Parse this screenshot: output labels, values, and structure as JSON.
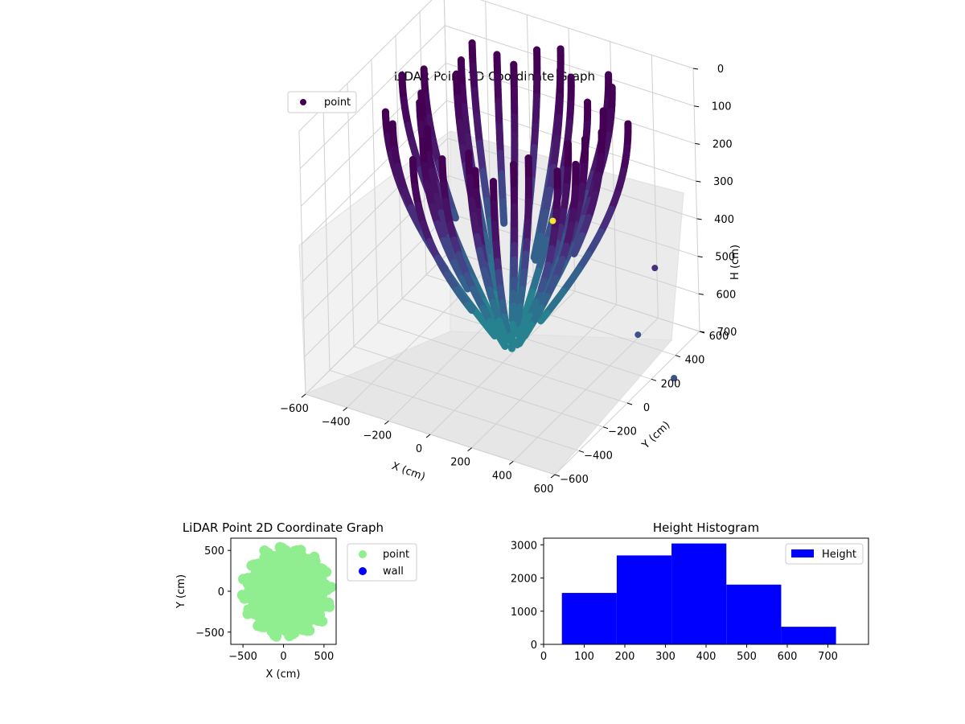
{
  "chart_data": [
    {
      "type": "scatter",
      "projection": "3d",
      "title": "LiDAR Point 3D Coordinate Graph",
      "xlabel": "X (cm)",
      "ylabel": "Y (cm)",
      "zlabel": "H (cm)",
      "xlim": [
        -600,
        600
      ],
      "ylim": [
        -600,
        600
      ],
      "zlim": [
        0,
        700
      ],
      "z_inverted": true,
      "xticks": [
        "−600",
        "−400",
        "−200",
        "0",
        "200",
        "400",
        "600"
      ],
      "yticks": [
        "−600",
        "−400",
        "−200",
        "0",
        "200",
        "400",
        "600"
      ],
      "zticks": [
        "0",
        "100",
        "200",
        "300",
        "400",
        "500",
        "600",
        "700"
      ],
      "colormap": "viridis",
      "grid": true,
      "legend": {
        "placement": "upper-left",
        "entries": [
          {
            "label": "point",
            "color": "#440154"
          }
        ]
      },
      "outlier_points": [
        {
          "x": 650,
          "y": -650,
          "h": 0,
          "color": "#fde725"
        },
        {
          "x": 600,
          "y": 250,
          "h": 420,
          "color": "#472d7b"
        },
        {
          "x": 600,
          "y": 100,
          "h": 550,
          "color": "#3b528b"
        },
        {
          "x": 650,
          "y": 300,
          "h": 720,
          "color": "#3b528b"
        }
      ]
    },
    {
      "type": "scatter",
      "title": "LiDAR Point 2D Coordinate Graph",
      "xlabel": "X (cm)",
      "ylabel": "Y (cm)",
      "xlim": [
        -650,
        650
      ],
      "ylim": [
        -650,
        650
      ],
      "xticks": [
        "−500",
        "0",
        "500"
      ],
      "yticks": [
        "−500",
        "0",
        "500"
      ],
      "series": [
        {
          "name": "point",
          "color": "#90ee90"
        },
        {
          "name": "wall",
          "color": "#0000ff"
        }
      ],
      "legend": {
        "placement": "outside-right"
      }
    },
    {
      "type": "bar",
      "title": "Height Histogram",
      "xlabel": "",
      "ylabel": "",
      "xlim": [
        0,
        800
      ],
      "ylim": [
        0,
        3200
      ],
      "xticks": [
        "0",
        "100",
        "200",
        "300",
        "400",
        "500",
        "600",
        "700"
      ],
      "yticks": [
        "0",
        "1000",
        "2000",
        "3000"
      ],
      "bins": [
        {
          "start": 45,
          "end": 180,
          "count": 1550
        },
        {
          "start": 180,
          "end": 315,
          "count": 2680
        },
        {
          "start": 315,
          "end": 450,
          "count": 3040
        },
        {
          "start": 450,
          "end": 585,
          "count": 1800
        },
        {
          "start": 585,
          "end": 720,
          "count": 530
        }
      ],
      "series": [
        {
          "name": "Height",
          "color": "#0000ff"
        }
      ],
      "legend": {
        "placement": "upper-right"
      }
    }
  ]
}
